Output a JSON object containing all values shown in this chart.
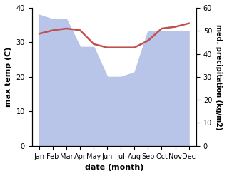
{
  "months": [
    "Jan",
    "Feb",
    "Mar",
    "Apr",
    "May",
    "Jun",
    "Jul",
    "Aug",
    "Sep",
    "Oct",
    "Nov",
    "Dec"
  ],
  "max_temp": [
    32.5,
    33.5,
    34.0,
    33.5,
    29.5,
    28.5,
    28.5,
    28.5,
    30.5,
    34.0,
    34.5,
    35.5
  ],
  "precipitation": [
    57,
    55,
    55,
    43,
    43,
    30,
    30,
    32,
    50,
    50,
    50,
    50
  ],
  "temp_color": "#c0504d",
  "precip_fill_color": "#b8c4e8",
  "title": "",
  "xlabel": "date (month)",
  "ylabel_left": "max temp (C)",
  "ylabel_right": "med. precipitation (kg/m2)",
  "ylim_left": [
    0,
    40
  ],
  "ylim_right": [
    0,
    60
  ],
  "yticks_left": [
    0,
    10,
    20,
    30,
    40
  ],
  "yticks_right": [
    0,
    10,
    20,
    30,
    40,
    50,
    60
  ],
  "background_color": "#ffffff",
  "figsize": [
    3.18,
    2.47
  ],
  "dpi": 100
}
